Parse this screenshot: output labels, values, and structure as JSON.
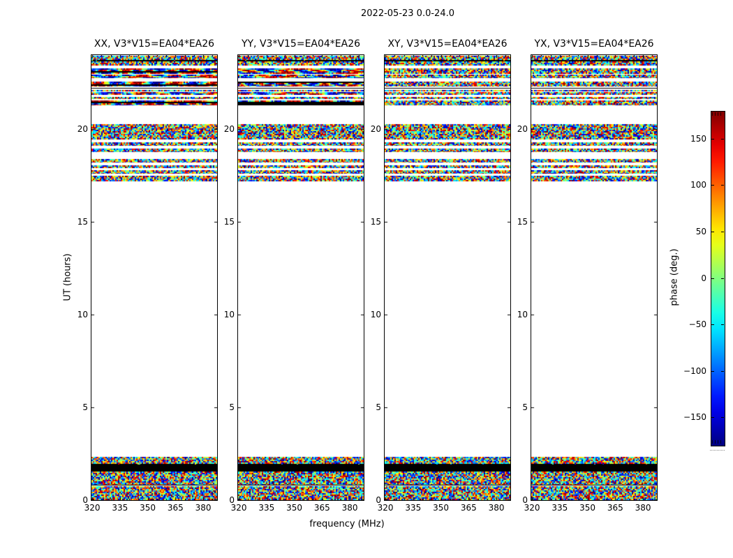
{
  "figure": {
    "title": "2022-05-23 0.0-24.0",
    "background": "#ffffff"
  },
  "chart_data": {
    "type": "heatmap",
    "title": "2022-05-23 0.0-24.0",
    "xlabel": "frequency (MHz)",
    "ylabel": "UT (hours)",
    "x_ticks": [
      320,
      335,
      350,
      365,
      380
    ],
    "y_ticks": [
      0,
      5,
      10,
      15,
      20
    ],
    "x_range": [
      319.6,
      387.5
    ],
    "y_range": [
      0,
      24
    ],
    "panels": [
      {
        "title": "XX, V3*V15=EA04*EA26",
        "pol": "XX",
        "coherent_top": true
      },
      {
        "title": "YY, V3*V15=EA04*EA26",
        "pol": "YY",
        "coherent_top": true
      },
      {
        "title": "XY, V3*V15=EA04*EA26",
        "pol": "XY",
        "coherent_top": false
      },
      {
        "title": "YX, V3*V15=EA04*EA26",
        "pol": "YX",
        "coherent_top": false
      }
    ],
    "colorbar": {
      "label": "phase (deg.)",
      "ticks": [
        150,
        100,
        50,
        0,
        -50,
        -100,
        -150
      ],
      "range": [
        -180,
        180
      ],
      "colormap": "jet",
      "top_color": "#7f0000",
      "bottom_color": "#00007f"
    },
    "bands_ut": [
      {
        "ut": [
          23.73,
          23.97
        ],
        "kind": "noise"
      },
      {
        "ut": [
          23.66,
          23.73
        ],
        "kind": "black"
      },
      {
        "ut": [
          23.43,
          23.66
        ],
        "kind": "noise"
      },
      {
        "ut": [
          22.98,
          23.28
        ],
        "kind": "coherent"
      },
      {
        "ut": [
          22.76,
          22.95
        ],
        "kind": "coherent"
      },
      {
        "ut": [
          22.3,
          22.57
        ],
        "kind": "coherent"
      },
      {
        "ut": [
          22.19,
          22.24
        ],
        "kind": "line"
      },
      {
        "ut": [
          22.04,
          22.13
        ],
        "kind": "noise"
      },
      {
        "ut": [
          21.86,
          22.0
        ],
        "kind": "coherent"
      },
      {
        "ut": [
          21.63,
          21.75
        ],
        "kind": "noise"
      },
      {
        "ut": [
          21.29,
          21.55
        ],
        "kind": "coherent"
      },
      {
        "ut": [
          19.45,
          20.27
        ],
        "kind": "noise"
      },
      {
        "ut": [
          19.11,
          19.3
        ],
        "kind": "noise"
      },
      {
        "ut": [
          18.77,
          18.96
        ],
        "kind": "noise"
      },
      {
        "ut": [
          18.21,
          18.4
        ],
        "kind": "noise"
      },
      {
        "ut": [
          17.91,
          18.06
        ],
        "kind": "noise"
      },
      {
        "ut": [
          17.6,
          17.79
        ],
        "kind": "noise"
      },
      {
        "ut": [
          17.19,
          17.49
        ],
        "kind": "noise"
      },
      {
        "ut": [
          1.96,
          2.33
        ],
        "kind": "noise"
      },
      {
        "ut": [
          1.54,
          1.96
        ],
        "kind": "black"
      },
      {
        "ut": [
          0.83,
          1.54
        ],
        "kind": "noise"
      },
      {
        "ut": [
          0.78,
          0.82
        ],
        "kind": "line"
      },
      {
        "ut": [
          0.0,
          0.75
        ],
        "kind": "noise"
      }
    ]
  }
}
